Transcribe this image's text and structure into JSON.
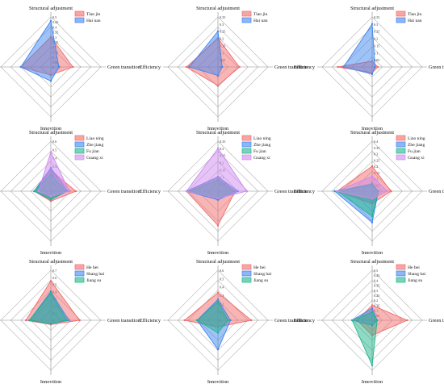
{
  "palette": {
    "red": "#f26b6b",
    "blue": "#3f86f0",
    "green": "#20b58a",
    "purple": "#cf8af0",
    "grid": "#b4b4b4"
  },
  "chart_data": [
    {
      "type": "radar",
      "axes": [
        "Structural adjustment",
        "Green transition",
        "Innovition",
        "Efficiency"
      ],
      "ticks": [
        "0.5",
        "0.45",
        "0.4",
        "0.35",
        "0.3",
        "0.25",
        "0.2",
        "0.15",
        "0.1",
        "0.05",
        "0"
      ],
      "rmax": 0.5,
      "series": [
        {
          "name": "Tian jin",
          "color": "red",
          "values": [
            0.3,
            0.22,
            0.08,
            0.3
          ]
        },
        {
          "name": "Hai nan",
          "color": "blue",
          "values": [
            0.46,
            0.08,
            0.14,
            0.3
          ]
        }
      ]
    },
    {
      "type": "radar",
      "axes": [
        "Structural adjustment",
        "Green transition",
        "Innovition",
        "Efficiency"
      ],
      "ticks": [
        "0.35",
        "0.3",
        "0.25",
        "0.2",
        "0.15",
        "0.1",
        "0.05",
        "0"
      ],
      "rmax": 0.35,
      "series": [
        {
          "name": "Tian jin",
          "color": "red",
          "values": [
            0.2,
            0.15,
            0.13,
            0.22
          ]
        },
        {
          "name": "Hai nan",
          "color": "blue",
          "values": [
            0.25,
            0.03,
            0.06,
            0.2
          ]
        }
      ]
    },
    {
      "type": "radar",
      "axes": [
        "Structural adjustment",
        "Green transition",
        "Innovition",
        "Efficiency"
      ],
      "ticks": [
        "0.35",
        "0.3",
        "0.25",
        "0.2",
        "0.15",
        "0.1",
        "0.05",
        "0"
      ],
      "rmax": 0.35,
      "series": [
        {
          "name": "Tian jin",
          "color": "red",
          "values": [
            0.04,
            0.04,
            0.04,
            0.24
          ]
        },
        {
          "name": "Hai nan",
          "color": "blue",
          "values": [
            0.3,
            0.02,
            0.05,
            0.2
          ]
        }
      ]
    },
    {
      "type": "radar",
      "axes": [
        "Structural adjustment",
        "Green transition",
        "Innovition",
        "Efficiency"
      ],
      "ticks": [
        "0.6",
        "0.5",
        "0.4",
        "0.3",
        "0.2",
        "0.1",
        "0"
      ],
      "rmax": 0.6,
      "series": [
        {
          "name": "Liao ning",
          "color": "red",
          "values": [
            0.25,
            0.3,
            0.12,
            0.2
          ]
        },
        {
          "name": "Zhe jiang",
          "color": "blue",
          "values": [
            0.28,
            0.2,
            0.1,
            0.2
          ]
        },
        {
          "name": "Fu jian",
          "color": "green",
          "values": [
            0.2,
            0.18,
            0.1,
            0.2
          ]
        },
        {
          "name": "Guang xi",
          "color": "purple",
          "values": [
            0.47,
            0.22,
            0.06,
            0.15
          ]
        }
      ]
    },
    {
      "type": "radar",
      "axes": [
        "Structural adjustment",
        "Green transition",
        "Innovition",
        "Efficiency"
      ],
      "ticks": [
        "0.35",
        "0.3",
        "0.25",
        "0.2",
        "0.15",
        "0.1",
        "0.05",
        "0"
      ],
      "rmax": 0.35,
      "series": [
        {
          "name": "Liao ning",
          "color": "red",
          "values": [
            0.1,
            0.12,
            0.24,
            0.22
          ]
        },
        {
          "name": "Zhe jiang",
          "color": "blue",
          "values": [
            0.1,
            0.14,
            0.06,
            0.22
          ]
        },
        {
          "name": "Fu jian",
          "color": "green",
          "values": [
            0.08,
            0.11,
            0.05,
            0.2
          ]
        },
        {
          "name": "Guang xi",
          "color": "purple",
          "values": [
            0.3,
            0.2,
            0.05,
            0.22
          ]
        }
      ]
    },
    {
      "type": "radar",
      "axes": [
        "Structural adjustment",
        "Green transition",
        "Innovition",
        "Efficiency"
      ],
      "ticks": [
        "0.4",
        "0.35",
        "0.3",
        "0.25",
        "0.2",
        "0.15",
        "0.1",
        "0.05",
        "0"
      ],
      "rmax": 0.4,
      "series": [
        {
          "name": "Liao ning",
          "color": "red",
          "values": [
            0.2,
            0.15,
            0.1,
            0.28
          ]
        },
        {
          "name": "Zhe jiang",
          "color": "blue",
          "values": [
            0.05,
            0.05,
            0.25,
            0.3
          ]
        },
        {
          "name": "Fu jian",
          "color": "green",
          "values": [
            0.06,
            0.05,
            0.2,
            0.28
          ]
        },
        {
          "name": "Guang xi",
          "color": "purple",
          "values": [
            0.12,
            0.12,
            0.06,
            0.28
          ]
        }
      ]
    },
    {
      "type": "radar",
      "axes": [
        "Structural adjustment",
        "Green transition",
        "Innovition",
        "Efficiency"
      ],
      "ticks": [
        "0.7",
        "0.6",
        "0.5",
        "0.4",
        "0.3",
        "0.2",
        "0.1",
        "0"
      ],
      "rmax": 0.7,
      "series": [
        {
          "name": "He bei",
          "color": "red",
          "values": [
            0.55,
            0.4,
            0.06,
            0.35
          ]
        },
        {
          "name": "Shang hai",
          "color": "blue",
          "values": [
            0.4,
            0.25,
            0.05,
            0.3
          ]
        },
        {
          "name": "Jiang su",
          "color": "green",
          "values": [
            0.38,
            0.22,
            0.05,
            0.3
          ]
        }
      ]
    },
    {
      "type": "radar",
      "axes": [
        "Structural adjustment",
        "Green transition",
        "Innovition",
        "Efficiency"
      ],
      "ticks": [
        "0.6",
        "0.5",
        "0.4",
        "0.3",
        "0.2",
        "0.1",
        "0"
      ],
      "rmax": 0.6,
      "series": [
        {
          "name": "He bei",
          "color": "red",
          "values": [
            0.33,
            0.4,
            0.08,
            0.4
          ]
        },
        {
          "name": "Shang hai",
          "color": "blue",
          "values": [
            0.25,
            0.15,
            0.35,
            0.25
          ]
        },
        {
          "name": "Jiang su",
          "color": "green",
          "values": [
            0.22,
            0.12,
            0.15,
            0.25
          ]
        }
      ]
    },
    {
      "type": "radar",
      "axes": [
        "Structural adjustment",
        "Green transition",
        "Innovition",
        "Efficiency"
      ],
      "ticks": [
        "0.5",
        "0.45",
        "0.4",
        "0.35",
        "0.3",
        "0.25",
        "0.2",
        "0.15",
        "0.1",
        "0.05",
        "0"
      ],
      "rmax": 0.5,
      "series": [
        {
          "name": "He bei",
          "color": "red",
          "values": [
            0.15,
            0.35,
            0.15,
            0.15
          ]
        },
        {
          "name": "Shang hai",
          "color": "blue",
          "values": [
            0.12,
            0.05,
            0.05,
            0.2
          ]
        },
        {
          "name": "Jiang su",
          "color": "green",
          "values": [
            0.08,
            0.05,
            0.45,
            0.2
          ]
        }
      ]
    }
  ]
}
